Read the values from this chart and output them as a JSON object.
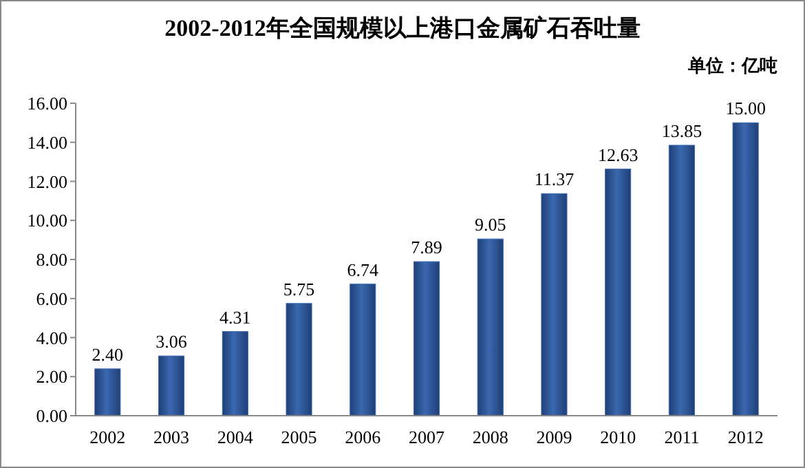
{
  "chart_data": {
    "type": "bar",
    "title": "2002-2012年全国规模以上港口金属矿石吞吐量",
    "annotations": [
      "单位：亿吨"
    ],
    "categories": [
      "2002",
      "2003",
      "2004",
      "2005",
      "2006",
      "2007",
      "2008",
      "2009",
      "2010",
      "2011",
      "2012"
    ],
    "values": [
      2.4,
      3.06,
      4.31,
      5.75,
      6.74,
      7.89,
      9.05,
      11.37,
      12.63,
      13.85,
      15.0
    ],
    "value_labels": [
      "2.40",
      "3.06",
      "4.31",
      "5.75",
      "6.74",
      "7.89",
      "9.05",
      "11.37",
      "12.63",
      "13.85",
      "15.00"
    ],
    "color": "#3a68b0",
    "ylim": [
      0,
      16
    ],
    "yticks": [
      {
        "value": 0,
        "label": "0.00"
      },
      {
        "value": 2,
        "label": "2.00"
      },
      {
        "value": 4,
        "label": "4.00"
      },
      {
        "value": 6,
        "label": "6.00"
      },
      {
        "value": 8,
        "label": "8.00"
      },
      {
        "value": 10,
        "label": "10.00"
      },
      {
        "value": 12,
        "label": "12.00"
      },
      {
        "value": 14,
        "label": "14.00"
      },
      {
        "value": 16,
        "label": "16.00"
      }
    ]
  }
}
